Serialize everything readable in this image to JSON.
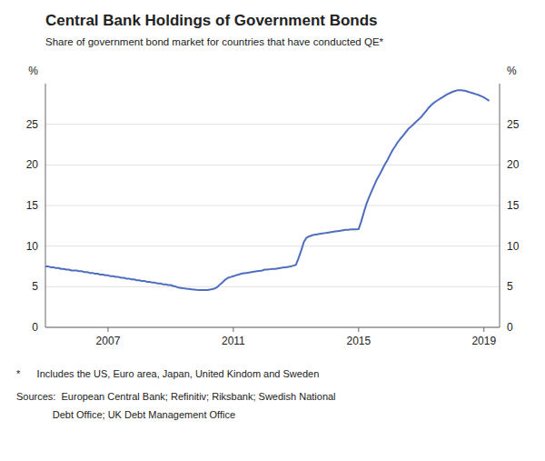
{
  "chart_data": {
    "type": "line",
    "title": "Central Bank Holdings of Government Bonds",
    "subtitle": "Share of government bond market for countries that have conducted QE*",
    "ylabel": "%",
    "y2label": "%",
    "annotations": [
      "*      Includes the US, Euro area, Japan, United Kindom and Sweden",
      "Sources:  European Central Bank; Refinitiv; Riksbank; Swedish National",
      "             Debt Office; UK Debt Management Office"
    ],
    "color": "#4F6EBF",
    "grid": true,
    "xlim": [
      2005.0,
      2019.5
    ],
    "xticks": [
      2007,
      2011,
      2015,
      2019
    ],
    "ylim": [
      0,
      30
    ],
    "yticks": [
      0,
      5,
      10,
      15,
      20,
      25
    ],
    "y2lim": [
      0,
      30
    ],
    "y2ticks": [
      0,
      5,
      10,
      15,
      20,
      25
    ],
    "x": [
      2005.0,
      2005.08,
      2005.17,
      2005.25,
      2005.33,
      2005.42,
      2005.5,
      2005.58,
      2005.67,
      2005.75,
      2005.83,
      2005.92,
      2006.0,
      2006.08,
      2006.17,
      2006.25,
      2006.33,
      2006.42,
      2006.5,
      2006.58,
      2006.67,
      2006.75,
      2006.83,
      2006.92,
      2007.0,
      2007.08,
      2007.17,
      2007.25,
      2007.33,
      2007.42,
      2007.5,
      2007.58,
      2007.67,
      2007.75,
      2007.83,
      2007.92,
      2008.0,
      2008.08,
      2008.17,
      2008.25,
      2008.33,
      2008.42,
      2008.5,
      2008.58,
      2008.67,
      2008.75,
      2008.83,
      2008.92,
      2009.0,
      2009.08,
      2009.17,
      2009.25,
      2009.33,
      2009.42,
      2009.5,
      2009.58,
      2009.67,
      2009.75,
      2009.83,
      2009.92,
      2010.0,
      2010.08,
      2010.17,
      2010.25,
      2010.33,
      2010.42,
      2010.5,
      2010.58,
      2010.67,
      2010.75,
      2010.83,
      2010.92,
      2011.0,
      2011.08,
      2011.17,
      2011.25,
      2011.33,
      2011.42,
      2011.5,
      2011.58,
      2011.67,
      2011.75,
      2011.83,
      2011.92,
      2012.0,
      2012.08,
      2012.17,
      2012.25,
      2012.33,
      2012.42,
      2012.5,
      2012.58,
      2012.67,
      2012.75,
      2012.83,
      2012.92,
      2013.0,
      2013.08,
      2013.17,
      2013.25,
      2013.33,
      2013.42,
      2013.5,
      2013.58,
      2013.67,
      2013.75,
      2013.83,
      2013.92,
      2014.0,
      2014.08,
      2014.17,
      2014.25,
      2014.33,
      2014.42,
      2014.5,
      2014.58,
      2014.67,
      2014.75,
      2014.83,
      2014.92,
      2015.0,
      2015.08,
      2015.17,
      2015.25,
      2015.33,
      2015.42,
      2015.5,
      2015.58,
      2015.67,
      2015.75,
      2015.83,
      2015.92,
      2016.0,
      2016.08,
      2016.17,
      2016.25,
      2016.33,
      2016.42,
      2016.5,
      2016.58,
      2016.67,
      2016.75,
      2016.83,
      2016.92,
      2017.0,
      2017.08,
      2017.17,
      2017.25,
      2017.33,
      2017.42,
      2017.5,
      2017.58,
      2017.67,
      2017.75,
      2017.83,
      2017.92,
      2018.0,
      2018.08,
      2018.17,
      2018.25,
      2018.33,
      2018.42,
      2018.5,
      2018.58,
      2018.67,
      2018.75,
      2018.83,
      2018.92,
      2019.0,
      2019.08,
      2019.17
    ],
    "values": [
      7.5,
      7.5,
      7.4,
      7.4,
      7.3,
      7.3,
      7.2,
      7.2,
      7.1,
      7.1,
      7.0,
      7.0,
      7.0,
      6.9,
      6.9,
      6.8,
      6.8,
      6.7,
      6.7,
      6.6,
      6.6,
      6.5,
      6.5,
      6.4,
      6.4,
      6.3,
      6.3,
      6.2,
      6.2,
      6.1,
      6.1,
      6.0,
      6.0,
      5.9,
      5.9,
      5.8,
      5.8,
      5.7,
      5.7,
      5.6,
      5.6,
      5.5,
      5.5,
      5.4,
      5.4,
      5.3,
      5.3,
      5.2,
      5.2,
      5.1,
      5.0,
      4.9,
      4.85,
      4.8,
      4.75,
      4.72,
      4.68,
      4.65,
      4.62,
      4.6,
      4.6,
      4.6,
      4.6,
      4.65,
      4.7,
      4.8,
      5.0,
      5.3,
      5.6,
      5.9,
      6.1,
      6.2,
      6.3,
      6.4,
      6.5,
      6.6,
      6.65,
      6.7,
      6.75,
      6.8,
      6.85,
      6.9,
      6.95,
      7.0,
      7.1,
      7.1,
      7.15,
      7.2,
      7.2,
      7.25,
      7.3,
      7.35,
      7.4,
      7.45,
      7.5,
      7.6,
      7.7,
      8.5,
      9.5,
      10.5,
      11.0,
      11.2,
      11.3,
      11.4,
      11.45,
      11.5,
      11.55,
      11.6,
      11.65,
      11.7,
      11.75,
      11.8,
      11.85,
      11.9,
      11.95,
      12.0,
      12.0,
      12.05,
      12.05,
      12.05,
      12.1,
      13.0,
      14.2,
      15.2,
      16.0,
      16.8,
      17.5,
      18.2,
      18.8,
      19.4,
      20.0,
      20.6,
      21.2,
      21.8,
      22.3,
      22.8,
      23.2,
      23.6,
      24.0,
      24.4,
      24.7,
      25.0,
      25.3,
      25.6,
      25.9,
      26.3,
      26.7,
      27.1,
      27.4,
      27.7,
      27.9,
      28.1,
      28.3,
      28.5,
      28.7,
      28.85,
      29.0,
      29.1,
      29.2,
      29.2,
      29.15,
      29.1,
      29.0,
      28.9,
      28.8,
      28.7,
      28.6,
      28.45,
      28.3,
      28.1,
      27.9
    ]
  }
}
